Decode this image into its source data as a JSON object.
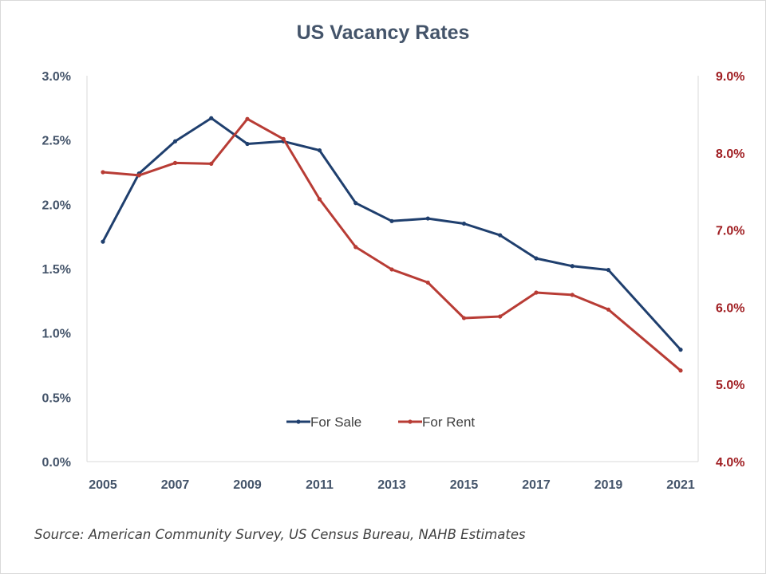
{
  "chart_data": {
    "type": "line",
    "title": "US Vacancy Rates",
    "source": "Source: American Community Survey, US Census Bureau, NAHB Estimates",
    "x": [
      2005,
      2006,
      2007,
      2008,
      2009,
      2010,
      2011,
      2012,
      2013,
      2014,
      2015,
      2016,
      2017,
      2018,
      2019,
      2021
    ],
    "x_tick_labels": [
      "2005",
      "2007",
      "2009",
      "2011",
      "2013",
      "2015",
      "2017",
      "2019",
      "2021"
    ],
    "xlim": [
      2005,
      2021
    ],
    "y_left_tick_labels": [
      "0.0%",
      "0.5%",
      "1.0%",
      "1.5%",
      "2.0%",
      "2.5%",
      "3.0%"
    ],
    "y_left_lim": [
      0.0,
      3.0
    ],
    "y_right_tick_labels": [
      "4.0%",
      "5.0%",
      "6.0%",
      "7.0%",
      "8.0%",
      "9.0%"
    ],
    "y_right_lim": [
      4.0,
      9.0
    ],
    "grid": false,
    "legend_position": "bottom-center",
    "series": [
      {
        "name": "For Sale",
        "axis": "left",
        "color": "#1f3f6e",
        "values": [
          1.71,
          2.24,
          2.49,
          2.67,
          2.47,
          2.49,
          2.42,
          2.01,
          1.87,
          1.89,
          1.85,
          1.76,
          1.58,
          1.52,
          1.49,
          0.87
        ]
      },
      {
        "name": "For Rent",
        "axis": "right",
        "color": "#b83c35",
        "values": [
          7.75,
          7.71,
          7.87,
          7.86,
          8.44,
          8.18,
          7.4,
          6.78,
          6.49,
          6.32,
          5.86,
          5.88,
          6.19,
          6.16,
          5.97,
          5.18
        ]
      }
    ]
  },
  "colors": {
    "title": "#44546a",
    "left_axis_text": "#44546a",
    "right_axis_text": "#a01e22",
    "axis_line": "#d9d9d9"
  }
}
